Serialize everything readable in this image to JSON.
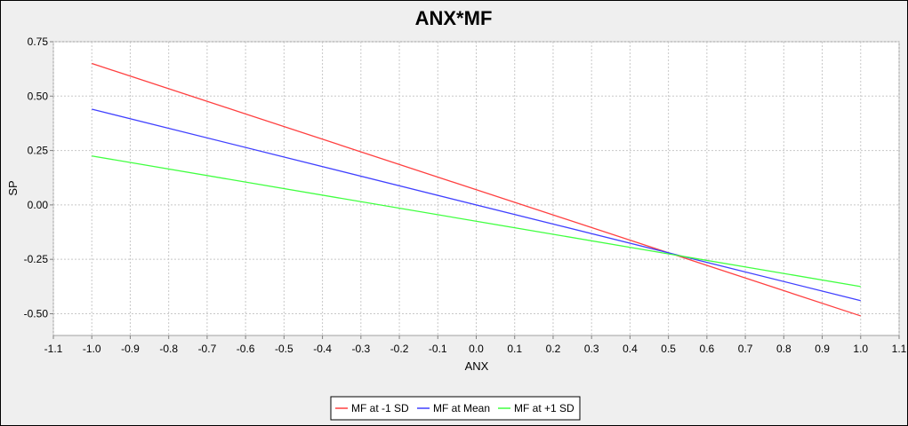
{
  "chart_data": {
    "type": "line",
    "title": "ANX*MF",
    "xlabel": "ANX",
    "ylabel": "SP",
    "xlim": [
      -1.1,
      1.1
    ],
    "ylim": [
      -0.6,
      0.75
    ],
    "x_ticks": [
      "-1.1",
      "-1.0",
      "-0.9",
      "-0.8",
      "-0.7",
      "-0.6",
      "-0.5",
      "-0.4",
      "-0.3",
      "-0.2",
      "-0.1",
      "0.0",
      "0.1",
      "0.2",
      "0.3",
      "0.4",
      "0.5",
      "0.6",
      "0.7",
      "0.8",
      "0.9",
      "1.0",
      "1.1"
    ],
    "y_ticks": [
      "0.75",
      "0.50",
      "0.25",
      "0.00",
      "-0.25",
      "-0.50"
    ],
    "grid": true,
    "legend_position": "bottom",
    "series": [
      {
        "name": "MF at -1 SD",
        "color": "#ff4040",
        "x": [
          -1.0,
          1.0
        ],
        "y": [
          0.65,
          -0.51
        ]
      },
      {
        "name": "MF at Mean",
        "color": "#4040ff",
        "x": [
          -1.0,
          1.0
        ],
        "y": [
          0.44,
          -0.44
        ]
      },
      {
        "name": "MF at +1 SD",
        "color": "#40ff40",
        "x": [
          -1.0,
          1.0
        ],
        "y": [
          0.225,
          -0.375
        ]
      }
    ]
  }
}
